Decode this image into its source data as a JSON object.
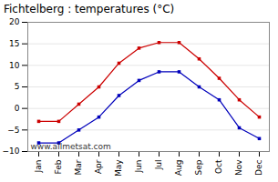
{
  "chart_data": {
    "type": "line",
    "title": "Fichtelberg : temperatures (°C)",
    "categories": [
      "Jan",
      "Feb",
      "Mar",
      "Apr",
      "May",
      "Jun",
      "Jul",
      "Aug",
      "Sep",
      "Oct",
      "Nov",
      "Dec"
    ],
    "series": [
      {
        "color": "#cc0000",
        "marker": "square",
        "values": [
          -3,
          -3,
          1,
          5,
          10.5,
          14,
          15.3,
          15.3,
          11.5,
          7,
          2,
          -2
        ]
      },
      {
        "color": "#0000bb",
        "marker": "square",
        "values": [
          -8,
          -8,
          -5,
          -2,
          3,
          6.5,
          8.5,
          8.5,
          5,
          2,
          -4.5,
          -7
        ]
      }
    ],
    "ylim": [
      -10,
      20
    ],
    "yticks": [
      -10,
      -5,
      0,
      5,
      10,
      15,
      20
    ],
    "grid": true,
    "annotations": [
      "www.allmetsat.com"
    ]
  }
}
